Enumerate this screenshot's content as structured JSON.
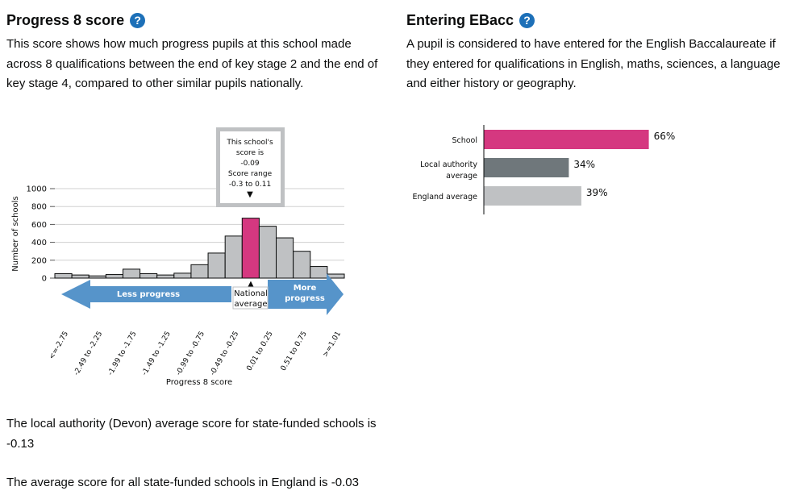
{
  "left": {
    "title": "Progress 8 score",
    "help_glyph": "?",
    "description": "This score shows how much progress pupils at this school made across 8 qualifications between the end of key stage 2 and the end of key stage 4, compared to other similar pupils nationally.",
    "local_authority_note": "The local authority (Devon) average score for state-funded schools is -0.13",
    "england_note": "The average score for all state-funded schools in England is -0.03"
  },
  "right": {
    "title": "Entering EBacc",
    "help_glyph": "?",
    "description": "A pupil is considered to have entered for the English Baccalaureate if they entered for qualifications in English, maths, sciences, a language and either history or geography."
  },
  "histogram": {
    "callout_lines": [
      "This school's",
      "score is",
      "-0.09",
      "Score range",
      "-0.3 to 0.11"
    ],
    "callout_pointer": "▼",
    "less_progress": "Less progress",
    "more_progress": [
      "More",
      "progress"
    ],
    "national_pointer": "▲",
    "national_average": [
      "National",
      "average"
    ]
  },
  "colors": {
    "bar_default": "#bfc1c3",
    "bar_highlight": "#d53880",
    "arrow": "#5694ca",
    "ebacc_school": "#d53880",
    "ebacc_la": "#6f777b",
    "ebacc_england": "#bfc1c3",
    "help_icon": "#1d70b8"
  },
  "chart_data": [
    {
      "type": "bar",
      "ylabel": "Number of schools",
      "xlabel": "Progress 8 score",
      "ylim": [
        0,
        1000
      ],
      "yticks": [
        0,
        200,
        400,
        600,
        800,
        1000
      ],
      "grid": true,
      "categories": [
        "<=-2.75",
        "-2.74 to -2.50",
        "-2.49 to -2.25",
        "-2.24 to -2.00",
        "-1.99 to -1.75",
        "-1.74 to -1.50",
        "-1.49 to -1.25",
        "-1.24 to -1.00",
        "-0.99 to -0.75",
        "-0.74 to -0.50",
        "-0.49 to -0.25",
        "-0.24 to 0.00",
        "0.01 to 0.25",
        "0.26 to 0.50",
        "0.51 to 0.75",
        "0.76 to 1.00",
        ">=1.01"
      ],
      "tick_labels": [
        "<=-2.75",
        "",
        "-2.49 to -2.25",
        "",
        "-1.99 to -1.75",
        "",
        "-1.49 to -1.25",
        "",
        "-0.99 to -0.75",
        "",
        "-0.49 to -0.25",
        "",
        "0.01 to 0.25",
        "",
        "0.51 to 0.75",
        "",
        ">=1.01"
      ],
      "values": [
        50,
        35,
        25,
        40,
        100,
        50,
        35,
        55,
        150,
        280,
        470,
        670,
        580,
        450,
        300,
        130,
        45
      ],
      "highlight_index": 11
    },
    {
      "type": "bar",
      "orientation": "horizontal",
      "categories": [
        [
          "School"
        ],
        [
          "Local authority",
          "average"
        ],
        [
          "England average"
        ]
      ],
      "values": [
        66,
        34,
        39
      ],
      "value_labels": [
        "66%",
        "34%",
        "39%"
      ],
      "xlim": [
        0,
        100
      ]
    }
  ]
}
